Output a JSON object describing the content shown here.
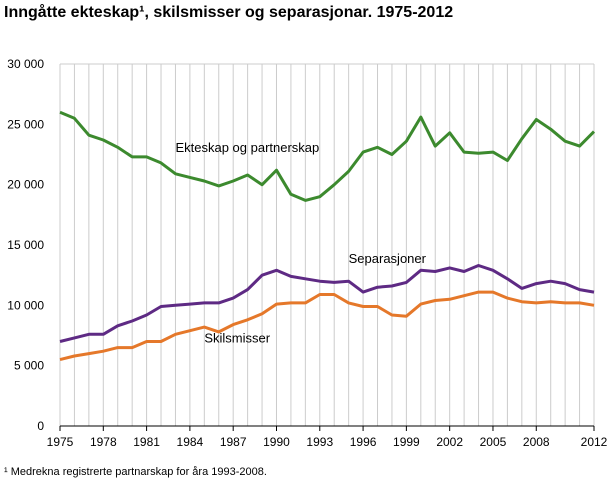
{
  "title": "Inngåtte ekteskap¹, skilsmisser og separasjonar. 1975-2012",
  "footnote": "¹ Medrekna registrerte partnarskap for åra 1993-2008.",
  "chart_data": {
    "type": "line",
    "title": "Inngåtte ekteskap¹, skilsmisser og separasjonar. 1975-2012",
    "x": [
      1975,
      1976,
      1977,
      1978,
      1979,
      1980,
      1981,
      1982,
      1983,
      1984,
      1985,
      1986,
      1987,
      1988,
      1989,
      1990,
      1991,
      1992,
      1993,
      1994,
      1995,
      1996,
      1997,
      1998,
      1999,
      2000,
      2001,
      2002,
      2003,
      2004,
      2005,
      2006,
      2007,
      2008,
      2009,
      2010,
      2011,
      2012
    ],
    "xlim": [
      1975,
      2012
    ],
    "ylim": [
      0,
      30000
    ],
    "x_ticks": [
      {
        "value": 1975,
        "label": "1975"
      },
      {
        "value": 1978,
        "label": "1978"
      },
      {
        "value": 1981,
        "label": "1981"
      },
      {
        "value": 1984,
        "label": "1984"
      },
      {
        "value": 1987,
        "label": "1987"
      },
      {
        "value": 1990,
        "label": "1990"
      },
      {
        "value": 1993,
        "label": "1993"
      },
      {
        "value": 1996,
        "label": "1996"
      },
      {
        "value": 1999,
        "label": "1999"
      },
      {
        "value": 2002,
        "label": "2002"
      },
      {
        "value": 2005,
        "label": "2005"
      },
      {
        "value": 2008,
        "label": "2008"
      },
      {
        "value": 2012,
        "label": "2012"
      }
    ],
    "y_ticks": [
      {
        "value": 0,
        "label": "0"
      },
      {
        "value": 5000,
        "label": "5 000"
      },
      {
        "value": 10000,
        "label": "10 000"
      },
      {
        "value": 15000,
        "label": "15 000"
      },
      {
        "value": 20000,
        "label": "20 000"
      },
      {
        "value": 25000,
        "label": "25 000"
      },
      {
        "value": 30000,
        "label": "30 000"
      }
    ],
    "grid": "vertical lines at every year",
    "series": [
      {
        "name": "Ekteskap og partnerskap",
        "color": "#3c8a2e",
        "label_at": [
          1983,
          22700
        ],
        "values": [
          26000,
          25500,
          24100,
          23700,
          23100,
          22300,
          22300,
          21800,
          20900,
          20600,
          20300,
          19900,
          20300,
          20800,
          20000,
          21200,
          19200,
          18700,
          19000,
          20000,
          21100,
          22700,
          23100,
          22500,
          23600,
          25600,
          23200,
          24300,
          22700,
          22600,
          22700,
          22000,
          23800,
          25400,
          24600,
          23600,
          23200,
          24400
        ]
      },
      {
        "name": "Separasjoner",
        "color": "#5e2a84",
        "label_at": [
          1995,
          13500
        ],
        "values": [
          7000,
          7300,
          7600,
          7600,
          8300,
          8700,
          9200,
          9900,
          10000,
          10100,
          10200,
          10200,
          10600,
          11300,
          12500,
          12900,
          12400,
          12200,
          12000,
          11900,
          12000,
          11100,
          11500,
          11600,
          11900,
          12900,
          12800,
          13100,
          12800,
          13300,
          12900,
          12200,
          11400,
          11800,
          12000,
          11800,
          11300,
          11100
        ]
      },
      {
        "name": "Skilsmisser",
        "color": "#e5782a",
        "label_at": [
          1985,
          6900
        ],
        "values": [
          5500,
          5800,
          6000,
          6200,
          6500,
          6500,
          7000,
          7000,
          7600,
          7900,
          8200,
          7800,
          8400,
          8800,
          9300,
          10100,
          10200,
          10200,
          10900,
          10900,
          10200,
          9900,
          9900,
          9200,
          9100,
          10100,
          10400,
          10500,
          10800,
          11100,
          11100,
          10600,
          10300,
          10200,
          10300,
          10200,
          10200,
          10000
        ]
      }
    ]
  }
}
